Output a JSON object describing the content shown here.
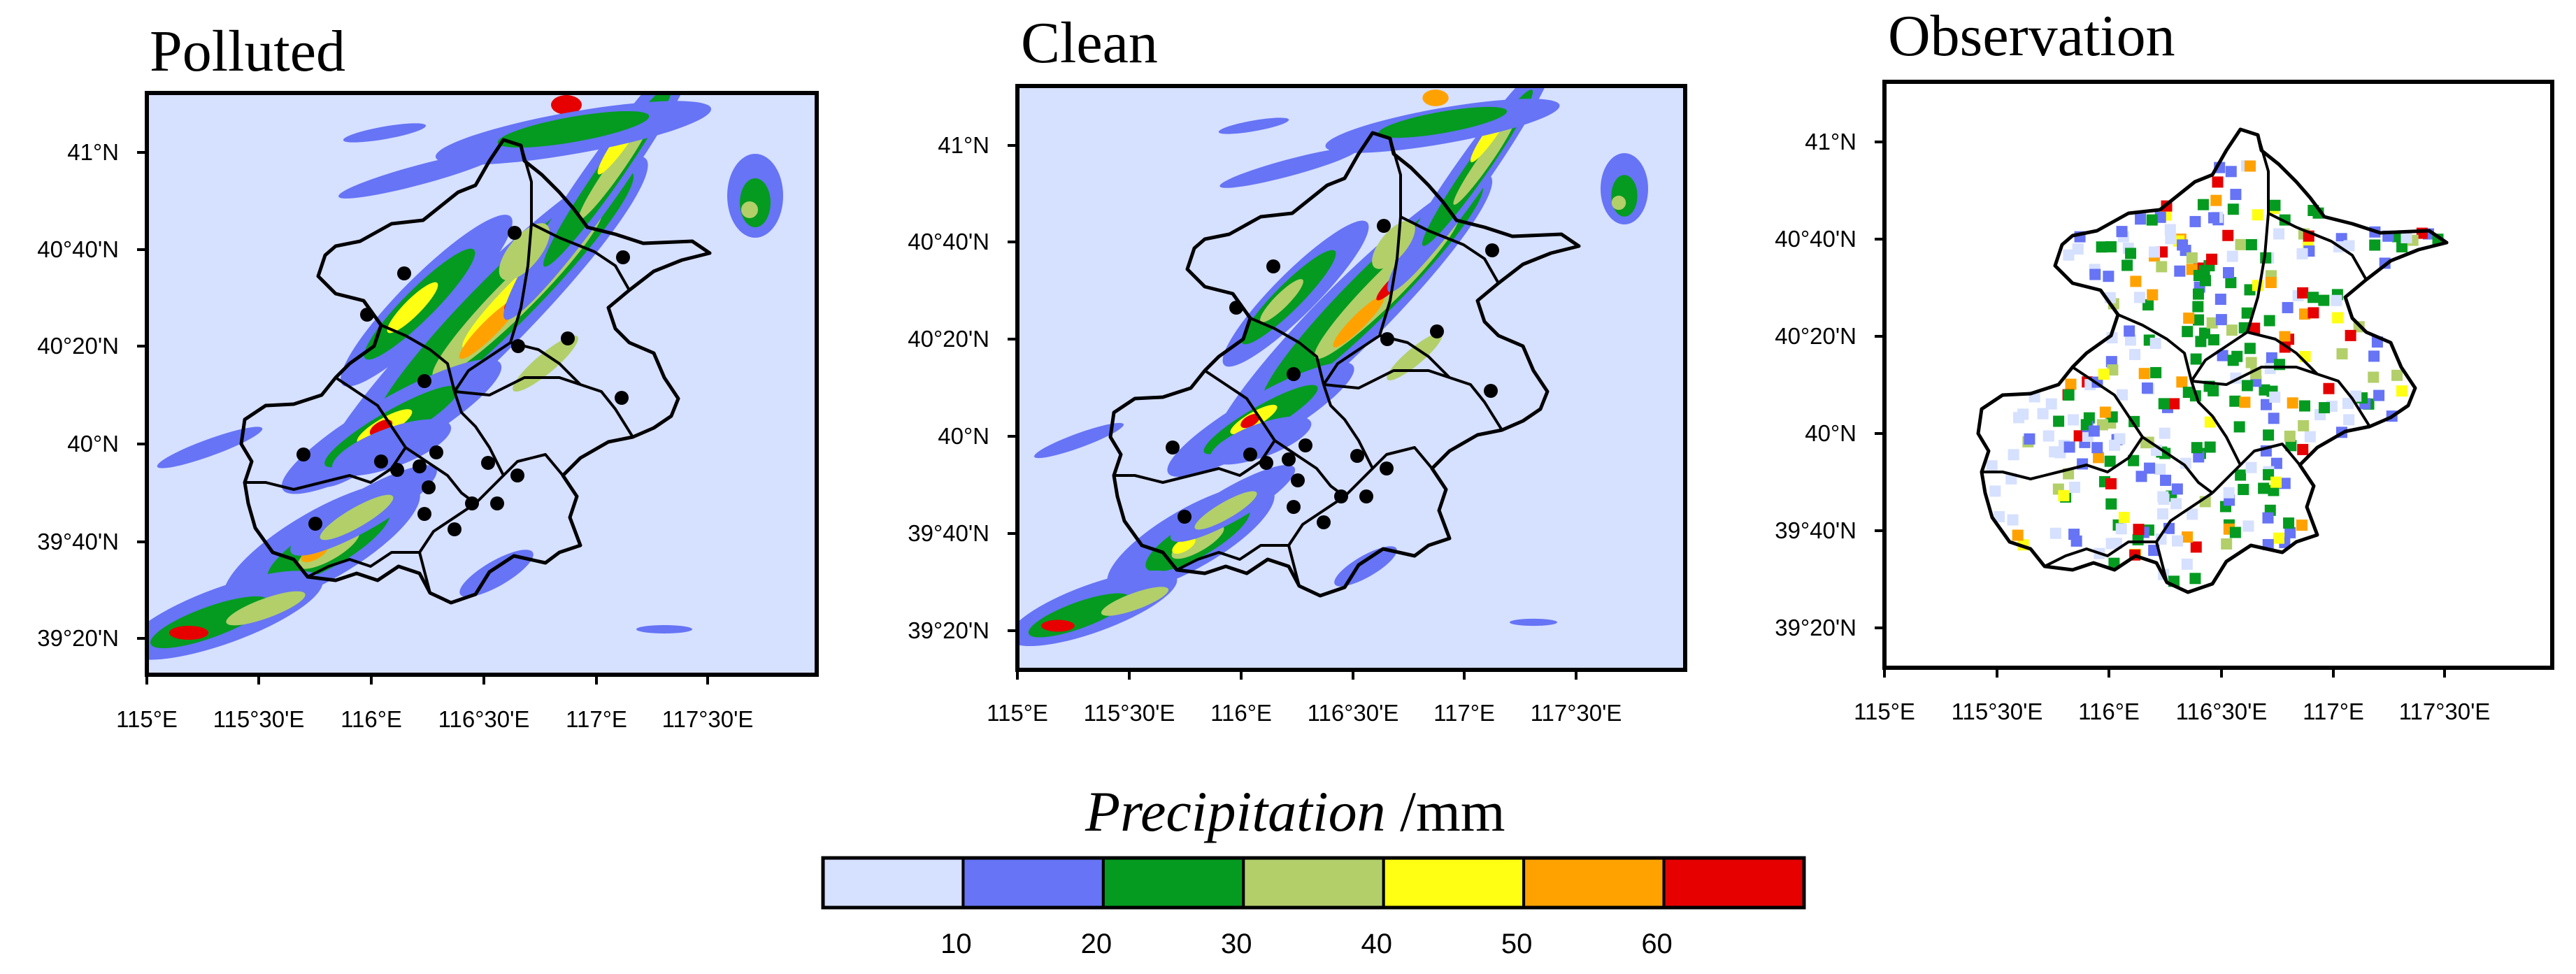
{
  "panels": [
    {
      "title": "Polluted"
    },
    {
      "title": "Clean"
    },
    {
      "title": "Observation"
    }
  ],
  "lat_ticks": [
    "41°N",
    "40°40'N",
    "40°20'N",
    "40°N",
    "39°40'N",
    "39°20'N"
  ],
  "lon_ticks": [
    "115°E",
    "115°30'E",
    "116°E",
    "116°30'E",
    "117°E",
    "117°30'E"
  ],
  "colorbar": {
    "title_italic": "Precipitation",
    "title_unit": " /mm",
    "colors": [
      "#d6e0ff",
      "#6674f5",
      "#049b20",
      "#b2cf6a",
      "#ffff14",
      "#ffa200",
      "#e60000"
    ],
    "ticks": [
      "10",
      "20",
      "30",
      "40",
      "50",
      "60"
    ]
  },
  "map_colors": {
    "background": "#d6e0ff",
    "boundary": "#000000",
    "station": "#000000"
  }
}
